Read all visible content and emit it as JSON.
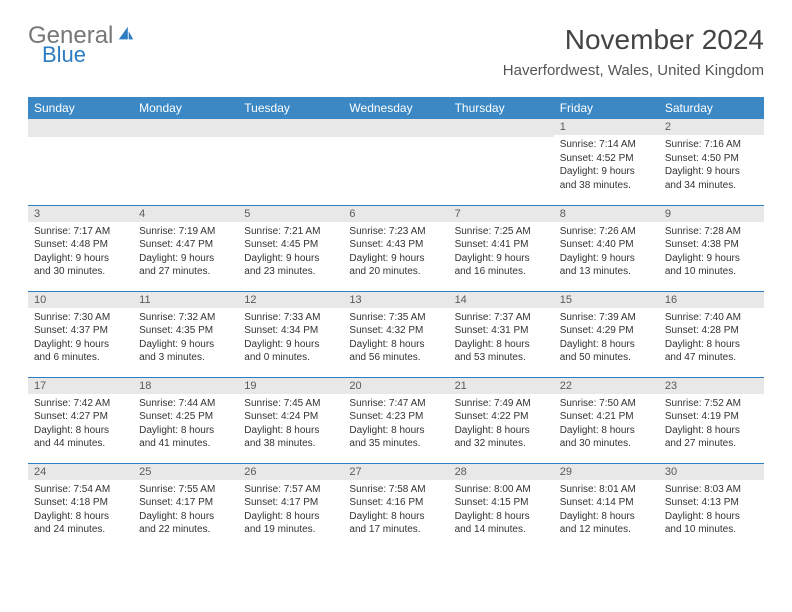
{
  "brand": {
    "word1": "General",
    "word2": "Blue",
    "colors": {
      "word1": "#777777",
      "word2": "#2d7dc2",
      "icon": "#2d7dc2"
    }
  },
  "title": "November 2024",
  "subtitle": "Haverfordwest, Wales, United Kingdom",
  "header_bg": "#3b88c4",
  "daynum_bg": "#e8e8e8",
  "rule_color": "#2d7dc2",
  "weekdays": [
    "Sunday",
    "Monday",
    "Tuesday",
    "Wednesday",
    "Thursday",
    "Friday",
    "Saturday"
  ],
  "weeks": [
    [
      null,
      null,
      null,
      null,
      null,
      {
        "n": "1",
        "sr": "7:14 AM",
        "ss": "4:52 PM",
        "dl": "9 hours and 38 minutes."
      },
      {
        "n": "2",
        "sr": "7:16 AM",
        "ss": "4:50 PM",
        "dl": "9 hours and 34 minutes."
      }
    ],
    [
      {
        "n": "3",
        "sr": "7:17 AM",
        "ss": "4:48 PM",
        "dl": "9 hours and 30 minutes."
      },
      {
        "n": "4",
        "sr": "7:19 AM",
        "ss": "4:47 PM",
        "dl": "9 hours and 27 minutes."
      },
      {
        "n": "5",
        "sr": "7:21 AM",
        "ss": "4:45 PM",
        "dl": "9 hours and 23 minutes."
      },
      {
        "n": "6",
        "sr": "7:23 AM",
        "ss": "4:43 PM",
        "dl": "9 hours and 20 minutes."
      },
      {
        "n": "7",
        "sr": "7:25 AM",
        "ss": "4:41 PM",
        "dl": "9 hours and 16 minutes."
      },
      {
        "n": "8",
        "sr": "7:26 AM",
        "ss": "4:40 PM",
        "dl": "9 hours and 13 minutes."
      },
      {
        "n": "9",
        "sr": "7:28 AM",
        "ss": "4:38 PM",
        "dl": "9 hours and 10 minutes."
      }
    ],
    [
      {
        "n": "10",
        "sr": "7:30 AM",
        "ss": "4:37 PM",
        "dl": "9 hours and 6 minutes."
      },
      {
        "n": "11",
        "sr": "7:32 AM",
        "ss": "4:35 PM",
        "dl": "9 hours and 3 minutes."
      },
      {
        "n": "12",
        "sr": "7:33 AM",
        "ss": "4:34 PM",
        "dl": "9 hours and 0 minutes."
      },
      {
        "n": "13",
        "sr": "7:35 AM",
        "ss": "4:32 PM",
        "dl": "8 hours and 56 minutes."
      },
      {
        "n": "14",
        "sr": "7:37 AM",
        "ss": "4:31 PM",
        "dl": "8 hours and 53 minutes."
      },
      {
        "n": "15",
        "sr": "7:39 AM",
        "ss": "4:29 PM",
        "dl": "8 hours and 50 minutes."
      },
      {
        "n": "16",
        "sr": "7:40 AM",
        "ss": "4:28 PM",
        "dl": "8 hours and 47 minutes."
      }
    ],
    [
      {
        "n": "17",
        "sr": "7:42 AM",
        "ss": "4:27 PM",
        "dl": "8 hours and 44 minutes."
      },
      {
        "n": "18",
        "sr": "7:44 AM",
        "ss": "4:25 PM",
        "dl": "8 hours and 41 minutes."
      },
      {
        "n": "19",
        "sr": "7:45 AM",
        "ss": "4:24 PM",
        "dl": "8 hours and 38 minutes."
      },
      {
        "n": "20",
        "sr": "7:47 AM",
        "ss": "4:23 PM",
        "dl": "8 hours and 35 minutes."
      },
      {
        "n": "21",
        "sr": "7:49 AM",
        "ss": "4:22 PM",
        "dl": "8 hours and 32 minutes."
      },
      {
        "n": "22",
        "sr": "7:50 AM",
        "ss": "4:21 PM",
        "dl": "8 hours and 30 minutes."
      },
      {
        "n": "23",
        "sr": "7:52 AM",
        "ss": "4:19 PM",
        "dl": "8 hours and 27 minutes."
      }
    ],
    [
      {
        "n": "24",
        "sr": "7:54 AM",
        "ss": "4:18 PM",
        "dl": "8 hours and 24 minutes."
      },
      {
        "n": "25",
        "sr": "7:55 AM",
        "ss": "4:17 PM",
        "dl": "8 hours and 22 minutes."
      },
      {
        "n": "26",
        "sr": "7:57 AM",
        "ss": "4:17 PM",
        "dl": "8 hours and 19 minutes."
      },
      {
        "n": "27",
        "sr": "7:58 AM",
        "ss": "4:16 PM",
        "dl": "8 hours and 17 minutes."
      },
      {
        "n": "28",
        "sr": "8:00 AM",
        "ss": "4:15 PM",
        "dl": "8 hours and 14 minutes."
      },
      {
        "n": "29",
        "sr": "8:01 AM",
        "ss": "4:14 PM",
        "dl": "8 hours and 12 minutes."
      },
      {
        "n": "30",
        "sr": "8:03 AM",
        "ss": "4:13 PM",
        "dl": "8 hours and 10 minutes."
      }
    ]
  ],
  "labels": {
    "sunrise": "Sunrise:",
    "sunset": "Sunset:",
    "daylight": "Daylight:"
  }
}
